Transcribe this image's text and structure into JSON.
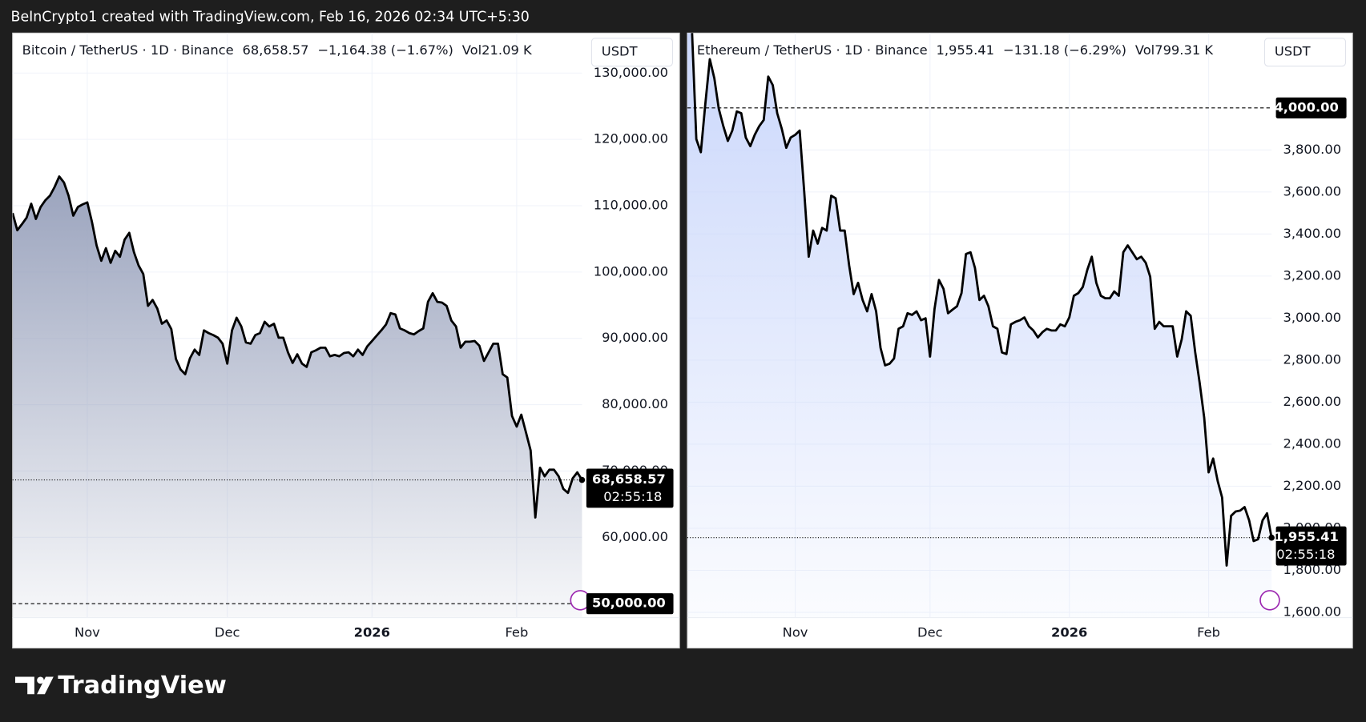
{
  "header_text": "BeInCrypto1 created with TradingView.com, Feb 16, 2026 02:34 UTC+5:30",
  "brand": "TradingView",
  "chart_data": [
    {
      "type": "line",
      "title": "Bitcoin / TetherUS · 1D · Binance",
      "price": "68,658.57",
      "change": "−1,164.38 (−1.67%)",
      "volume": "Vol21.09 K",
      "currency": "USDT",
      "countdown": "02:55:18",
      "color": "#000000",
      "area_color": "#9aa3bd",
      "values": [
        108900,
        106300,
        107200,
        108200,
        110300,
        108000,
        109800,
        110800,
        111500,
        112800,
        114400,
        113500,
        111500,
        108500,
        109800,
        110200,
        110500,
        107600,
        104000,
        101700,
        103600,
        101400,
        103200,
        102300,
        104900,
        105900,
        103000,
        101000,
        99700,
        94900,
        95800,
        94500,
        92200,
        92700,
        91400,
        86900,
        85300,
        84600,
        87000,
        88300,
        87500,
        91200,
        90800,
        90500,
        90100,
        89200,
        86200,
        91200,
        93100,
        91800,
        89400,
        89200,
        90500,
        90800,
        92500,
        91800,
        92200,
        90100,
        90100,
        87900,
        86300,
        87600,
        86200,
        85700,
        87900,
        88200,
        88600,
        88600,
        87300,
        87500,
        87300,
        87800,
        87900,
        87300,
        88300,
        87500,
        88800,
        89600,
        90400,
        91200,
        92100,
        93800,
        93600,
        91500,
        91200,
        90800,
        90600,
        91100,
        91500,
        95500,
        96800,
        95500,
        95400,
        94900,
        92700,
        91800,
        88600,
        89500,
        89500,
        89600,
        88900,
        86600,
        87900,
        89200,
        89200,
        84600,
        84100,
        78300,
        76700,
        78500,
        75800,
        73100,
        63000,
        70500,
        69200,
        70200,
        70200,
        69200,
        67300,
        66700,
        68900,
        69800,
        68658.57
      ],
      "xlim": [
        0,
        122
      ],
      "xticks": [
        {
          "value": 16,
          "label": "Nov"
        },
        {
          "value": 46,
          "label": "Dec"
        },
        {
          "value": 77,
          "label": "2026"
        },
        {
          "value": 108,
          "label": "Feb"
        }
      ],
      "ylim": [
        47900,
        136030
      ],
      "yticks": [
        {
          "value": 60000,
          "label": "60,000.00"
        },
        {
          "value": 70000,
          "label": "70,000.00"
        },
        {
          "value": 80000,
          "label": "80,000.00"
        },
        {
          "value": 90000,
          "label": "90,000.00"
        },
        {
          "value": 100000,
          "label": "100,000.00"
        },
        {
          "value": 110000,
          "label": "110,000.00"
        },
        {
          "value": 120000,
          "label": "120,000.00"
        },
        {
          "value": 130000,
          "label": "130,000.00"
        }
      ],
      "hline": {
        "value": 50000,
        "label": "50,000.00"
      },
      "grid": true
    },
    {
      "type": "line",
      "title": "Ethereum / TetherUS · 1D · Binance",
      "price": "1,955.41",
      "change": "−131.18 (−6.29%)",
      "volume": "Vol799.31 K",
      "currency": "USDT",
      "countdown": "02:55:18",
      "color": "#000000",
      "area_color": "#c9d6fb",
      "values": [
        4450,
        4380,
        3851,
        3789,
        4017,
        4232,
        4141,
        3996,
        3913,
        3843,
        3892,
        3983,
        3975,
        3859,
        3818,
        3872,
        3913,
        3942,
        4149,
        4108,
        3975,
        3901,
        3810,
        3859,
        3872,
        3892,
        3603,
        3292,
        3416,
        3354,
        3429,
        3416,
        3582,
        3570,
        3416,
        3416,
        3251,
        3114,
        3168,
        3086,
        3032,
        3114,
        3032,
        2858,
        2775,
        2783,
        2808,
        2949,
        2961,
        3023,
        3015,
        3032,
        2990,
        2999,
        2817,
        3044,
        3181,
        3139,
        3023,
        3040,
        3056,
        3119,
        3305,
        3313,
        3239,
        3086,
        3106,
        3056,
        2961,
        2949,
        2837,
        2829,
        2970,
        2982,
        2990,
        3003,
        2961,
        2941,
        2908,
        2933,
        2949,
        2941,
        2941,
        2970,
        2961,
        3003,
        3106,
        3119,
        3148,
        3230,
        3292,
        3168,
        3106,
        3094,
        3094,
        3127,
        3106,
        3313,
        3346,
        3313,
        3280,
        3292,
        3263,
        3197,
        2949,
        2982,
        2961,
        2961,
        2961,
        2817,
        2899,
        3032,
        3011,
        2837,
        2692,
        2527,
        2266,
        2332,
        2225,
        2146,
        1823,
        2059,
        2080,
        2084,
        2101,
        2038,
        1939,
        1948,
        2038,
        2071,
        1955.41
      ],
      "xlim": [
        0,
        130
      ],
      "xticks": [
        {
          "value": 24,
          "label": "Nov"
        },
        {
          "value": 54,
          "label": "Dec"
        },
        {
          "value": 85,
          "label": "2026"
        },
        {
          "value": 116,
          "label": "Feb"
        }
      ],
      "ylim": [
        1575,
        4356
      ],
      "yticks": [
        {
          "value": 1600,
          "label": "1,600.00"
        },
        {
          "value": 1800,
          "label": "1,800.00"
        },
        {
          "value": 2000,
          "label": "2,000.00"
        },
        {
          "value": 2200,
          "label": "2,200.00"
        },
        {
          "value": 2400,
          "label": "2,400.00"
        },
        {
          "value": 2600,
          "label": "2,600.00"
        },
        {
          "value": 2800,
          "label": "2,800.00"
        },
        {
          "value": 3000,
          "label": "3,000.00"
        },
        {
          "value": 3200,
          "label": "3,200.00"
        },
        {
          "value": 3400,
          "label": "3,400.00"
        },
        {
          "value": 3600,
          "label": "3,600.00"
        },
        {
          "value": 3800,
          "label": "3,800.00"
        }
      ],
      "hline": {
        "value": 4000,
        "label": "4,000.00"
      },
      "grid": true
    }
  ]
}
